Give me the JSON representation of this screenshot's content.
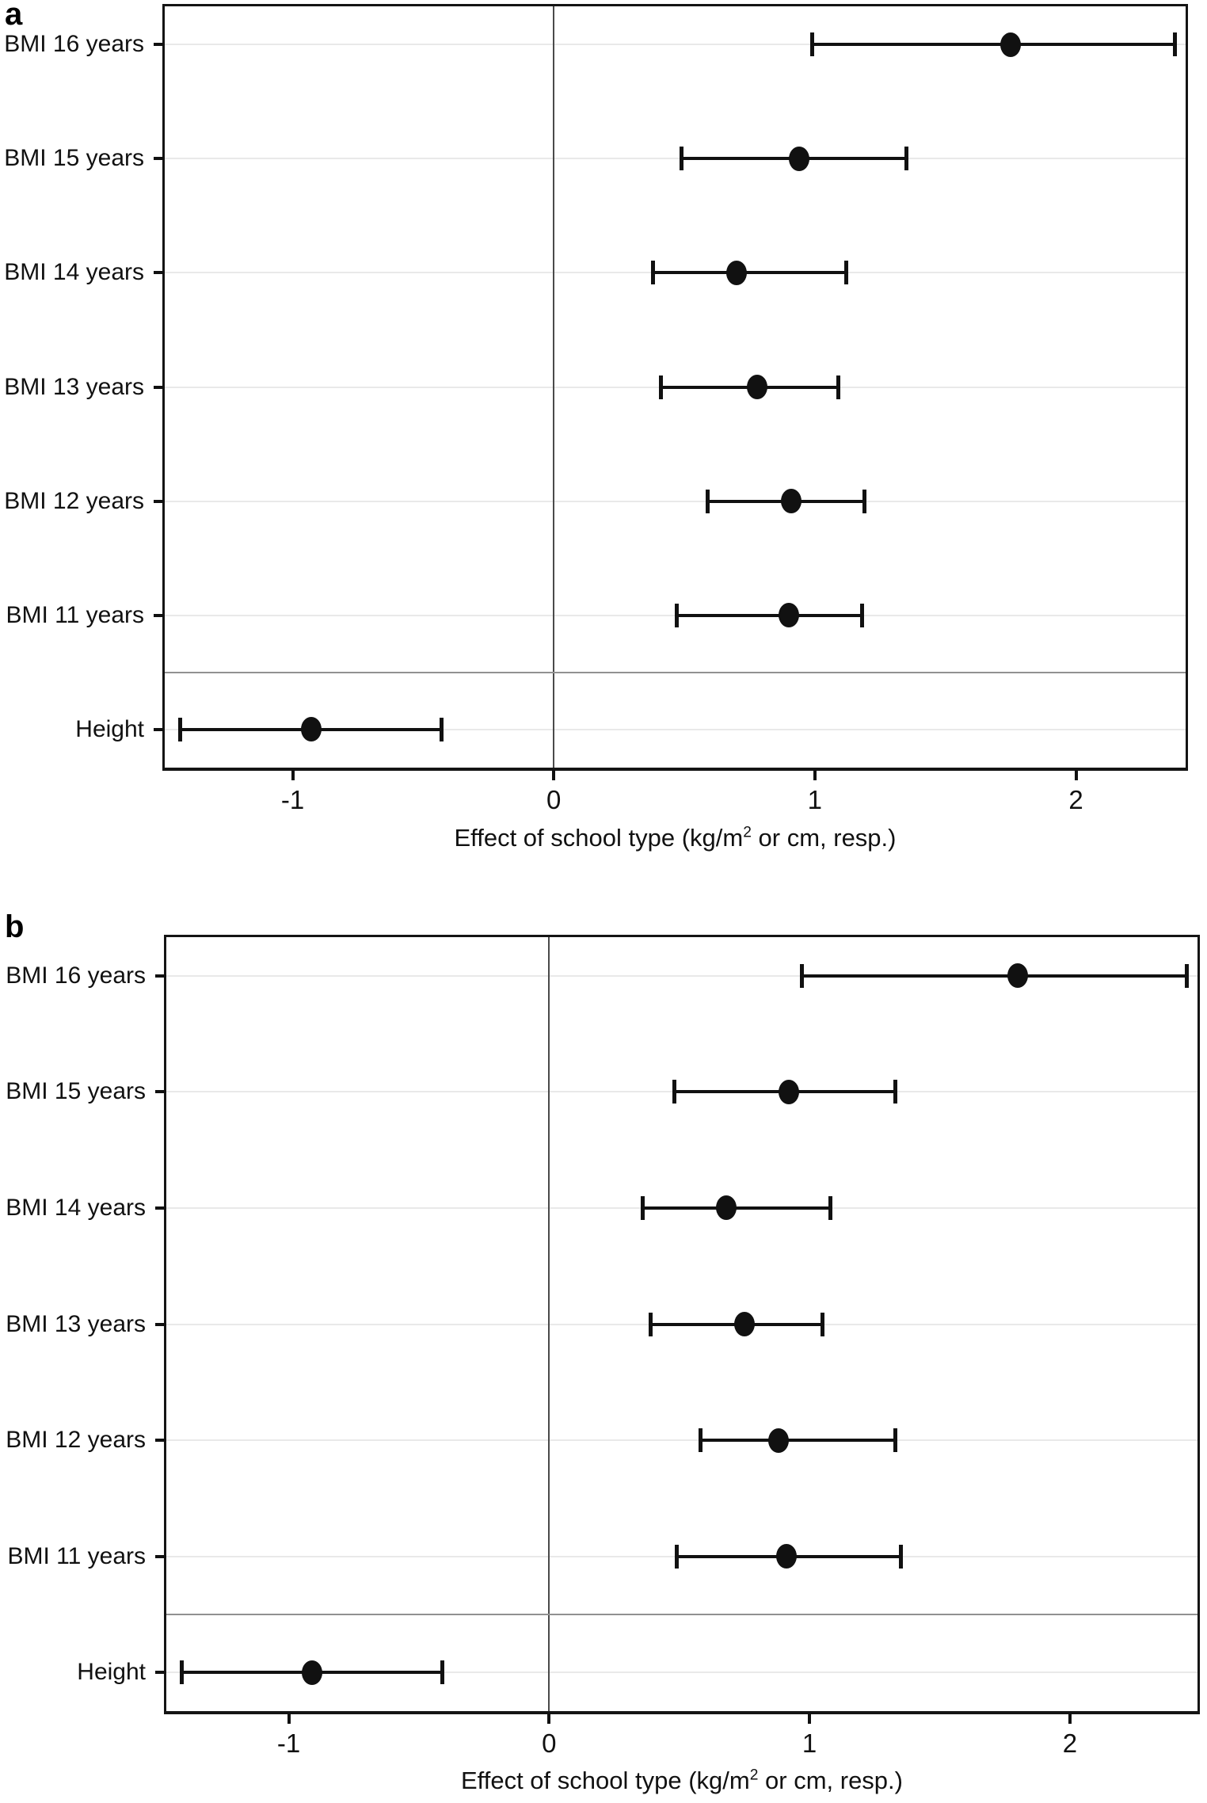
{
  "figure": {
    "description": "Two-panel forest plot of effect of school type on BMI by age and on height",
    "x_axis_label": "Effect of school type (kg/m² or cm, resp.)"
  },
  "chart_data": [
    {
      "type": "scatter",
      "panel": "a",
      "subtype": "forest-plot-horizontal-error-bars",
      "categories": [
        "BMI 16 years",
        "BMI 15 years",
        "BMI 14 years",
        "BMI 13 years",
        "BMI 12 years",
        "BMI 11 years",
        "Height"
      ],
      "estimates": [
        1.75,
        0.94,
        0.7,
        0.78,
        0.91,
        0.9,
        -0.93
      ],
      "ci_low": [
        0.99,
        0.49,
        0.38,
        0.41,
        0.59,
        0.47,
        -1.43
      ],
      "ci_high": [
        2.38,
        1.35,
        1.12,
        1.09,
        1.19,
        1.18,
        -0.43
      ],
      "xlabel": "Effect of school type (kg/m² or cm, resp.)",
      "xlabel_parts": [
        "Effect of school type (kg/m",
        "2",
        " or cm, resp.)"
      ],
      "xticks": [
        -1,
        0,
        1,
        2
      ],
      "xlim": [
        -1.49,
        2.42
      ],
      "zero_line": 0,
      "separator_frac": 0.875,
      "grid": "horizontal-light",
      "legend": "none"
    },
    {
      "type": "scatter",
      "panel": "b",
      "subtype": "forest-plot-horizontal-error-bars",
      "categories": [
        "BMI 16 years",
        "BMI 15 years",
        "BMI 14 years",
        "BMI 13 years",
        "BMI 12 years",
        "BMI 11 years",
        "Height"
      ],
      "estimates": [
        1.8,
        0.92,
        0.68,
        0.75,
        0.88,
        0.91,
        -0.91
      ],
      "ci_low": [
        0.97,
        0.48,
        0.36,
        0.39,
        0.58,
        0.49,
        -1.41
      ],
      "ci_high": [
        2.45,
        1.33,
        1.08,
        1.05,
        1.33,
        1.35,
        -0.41
      ],
      "xlabel": "Effect of school type (kg/m² or cm, resp.)",
      "xlabel_parts": [
        "Effect of school type (kg/m",
        "2",
        " or cm, resp.)"
      ],
      "xticks": [
        -1,
        0,
        1,
        2
      ],
      "xlim": [
        -1.47,
        2.49
      ],
      "zero_line": 0,
      "separator_frac": 0.875,
      "grid": "horizontal-light",
      "legend": "none"
    }
  ],
  "colors": {
    "marker": "#111111",
    "box_border": "#141414",
    "zero_line": "#4a4a4a",
    "gridline": "#e9e9e9",
    "separator": "#919191",
    "background": "#ffffff"
  }
}
